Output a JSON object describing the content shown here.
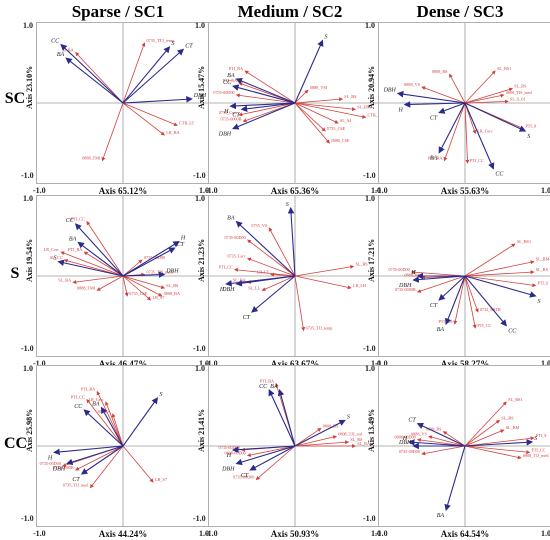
{
  "columns": [
    "Sparse / SC1",
    "Medium / SC2",
    "Dense / SC3"
  ],
  "rows": [
    "SC",
    "S",
    "CC"
  ],
  "ticks": {
    "xmin": "-1.0",
    "xmax": "1.0",
    "ymax": "1.0",
    "ymin": "-1.0"
  },
  "colors": {
    "env": "#2b2b8c",
    "species": "#d2403c",
    "axis": "#9a9a9a"
  },
  "chart_data": [
    {
      "type": "scatter",
      "id": "SC-SC1",
      "xlabel": "Axis 65.12%",
      "ylabel": "Axis 23.10%",
      "xlim": [
        -1,
        1
      ],
      "ylim": [
        -1,
        1
      ],
      "env": [
        {
          "label": "CC",
          "x": -0.72,
          "y": 0.73
        },
        {
          "label": "BA",
          "x": -0.66,
          "y": 0.56
        },
        {
          "label": "S",
          "x": 0.54,
          "y": 0.7
        },
        {
          "label": "CT",
          "x": 0.7,
          "y": 0.67
        },
        {
          "label": "DBH",
          "x": 0.8,
          "y": 0.05
        }
      ],
      "species": [
        {
          "label": "SL BA",
          "x": -0.55,
          "y": 0.63
        },
        {
          "label": "0735_TTJ_temp",
          "x": 0.25,
          "y": 0.75
        },
        {
          "label": "CTB_LT",
          "x": 0.63,
          "y": -0.28
        },
        {
          "label": "LR_BA",
          "x": 0.48,
          "y": -0.4
        },
        {
          "label": "0888_TMI",
          "x": -0.24,
          "y": -0.72
        }
      ]
    },
    {
      "type": "scatter",
      "id": "SC-SC2",
      "xlabel": "Axis 65.36%",
      "ylabel": "Axis 15.47%",
      "xlim": [
        -1,
        1
      ],
      "ylim": [
        -1,
        1
      ],
      "env": [
        {
          "label": "S",
          "x": 0.32,
          "y": 0.78
        },
        {
          "label": "BA",
          "x": -0.68,
          "y": 0.3
        },
        {
          "label": "CC",
          "x": -0.72,
          "y": 0.21
        },
        {
          "label": "H",
          "x": -0.75,
          "y": -0.04
        },
        {
          "label": "CT",
          "x": -0.62,
          "y": -0.08
        },
        {
          "label": "DBH",
          "x": -0.72,
          "y": -0.32
        }
      ],
      "species": [
        {
          "label": "PTI_BA",
          "x": -0.58,
          "y": 0.4
        },
        {
          "label": "PTI_BA",
          "x": -0.65,
          "y": 0.25
        },
        {
          "label": "0735-00D00",
          "x": -0.68,
          "y": 0.1
        },
        {
          "label": "0735_Cerc",
          "x": -0.65,
          "y": -0.15
        },
        {
          "label": "0735-0000B",
          "x": -0.6,
          "y": -0.23
        },
        {
          "label": "0888_VSI",
          "x": 0.15,
          "y": 0.16
        },
        {
          "label": "SL_BS",
          "x": 0.55,
          "y": 0.05
        },
        {
          "label": "SL_BM",
          "x": 0.7,
          "y": -0.08
        },
        {
          "label": "CTB_LT",
          "x": 0.82,
          "y": -0.18
        },
        {
          "label": "SL_S4",
          "x": 0.5,
          "y": -0.25
        },
        {
          "label": "0735_CSE",
          "x": 0.35,
          "y": -0.35
        },
        {
          "label": "0888_CSE",
          "x": 0.4,
          "y": -0.5
        }
      ]
    },
    {
      "type": "scatter",
      "id": "SC-SC3",
      "xlabel": "Axis 55.63%",
      "ylabel": "Axis 20.94%",
      "xlim": [
        -1,
        1
      ],
      "ylim": [
        -1,
        1
      ],
      "env": [
        {
          "label": "DBH",
          "x": -0.78,
          "y": 0.12
        },
        {
          "label": "H",
          "x": -0.7,
          "y": -0.02
        },
        {
          "label": "CT",
          "x": -0.3,
          "y": -0.12
        },
        {
          "label": "BA",
          "x": -0.3,
          "y": -0.62
        },
        {
          "label": "CC",
          "x": 0.33,
          "y": -0.82
        },
        {
          "label": "S",
          "x": 0.7,
          "y": -0.35
        }
      ],
      "species": [
        {
          "label": "SL_BS1",
          "x": 0.35,
          "y": 0.4
        },
        {
          "label": "0808_BS",
          "x": -0.18,
          "y": 0.36
        },
        {
          "label": "0888_VS",
          "x": -0.5,
          "y": 0.2
        },
        {
          "label": "SL_BS",
          "x": 0.55,
          "y": 0.18
        },
        {
          "label": "0808_TIS_med",
          "x": 0.45,
          "y": 0.1
        },
        {
          "label": "SL_S_01",
          "x": 0.5,
          "y": 0.02
        },
        {
          "label": "PTI_S",
          "x": 0.68,
          "y": -0.32
        },
        {
          "label": "LR_Cerc",
          "x": 0.12,
          "y": -0.38
        },
        {
          "label": "PTI_CC",
          "x": 0.03,
          "y": -0.75
        },
        {
          "label": "PTI_BA",
          "x": -0.24,
          "y": -0.72
        }
      ]
    },
    {
      "type": "scatter",
      "id": "S-SC1",
      "xlabel": "Axis 46.47%",
      "ylabel": "Axis 19.54%",
      "xlim": [
        -1,
        1
      ],
      "ylim": [
        -1,
        1
      ],
      "env": [
        {
          "label": "CC",
          "x": -0.55,
          "y": 0.65
        },
        {
          "label": "BA",
          "x": -0.52,
          "y": 0.42
        },
        {
          "label": "S",
          "x": -0.75,
          "y": 0.18
        },
        {
          "label": "H",
          "x": 0.65,
          "y": 0.43
        },
        {
          "label": "CT",
          "x": 0.6,
          "y": 0.35
        },
        {
          "label": "DBH",
          "x": 0.48,
          "y": 0.02
        }
      ],
      "species": [
        {
          "label": "PTI_CC",
          "x": -0.42,
          "y": 0.68
        },
        {
          "label": "PTI_BA",
          "x": -0.45,
          "y": 0.3
        },
        {
          "label": "LR_Cerc",
          "x": -0.72,
          "y": 0.3
        },
        {
          "label": "SL_CC",
          "x": -0.68,
          "y": 0.2
        },
        {
          "label": "SL_BA",
          "x": -0.58,
          "y": -0.08
        },
        {
          "label": "0735-00D00",
          "x": 0.22,
          "y": 0.2
        },
        {
          "label": "0735_TIS_med",
          "x": 0.25,
          "y": 0.02
        },
        {
          "label": "0888_TMI",
          "x": -0.3,
          "y": -0.18
        },
        {
          "label": "0735_CSE",
          "x": 0.05,
          "y": -0.25
        },
        {
          "label": "SL_BS",
          "x": 0.48,
          "y": -0.15
        },
        {
          "label": "LR_S7",
          "x": 0.32,
          "y": -0.3
        },
        {
          "label": "0808_BA",
          "x": 0.45,
          "y": -0.25
        }
      ]
    },
    {
      "type": "scatter",
      "id": "S-SC2",
      "xlabel": "Axis 63.67%",
      "ylabel": "Axis 21.23%",
      "xlim": [
        -1,
        1
      ],
      "ylim": [
        -1,
        1
      ],
      "env": [
        {
          "label": "S",
          "x": -0.05,
          "y": 0.85
        },
        {
          "label": "BA",
          "x": -0.68,
          "y": 0.68
        },
        {
          "label": "H",
          "x": -0.8,
          "y": -0.1
        },
        {
          "label": "DBH",
          "x": -0.68,
          "y": -0.1
        },
        {
          "label": "CT",
          "x": -0.5,
          "y": -0.45
        }
      ],
      "species": [
        {
          "label": "0735_VS",
          "x": -0.3,
          "y": 0.6
        },
        {
          "label": "0735-00D00",
          "x": -0.55,
          "y": 0.45
        },
        {
          "label": "0735_Cerc",
          "x": -0.55,
          "y": 0.22
        },
        {
          "label": "PTI_CC",
          "x": -0.7,
          "y": 0.08
        },
        {
          "label": "LR_LT",
          "x": -0.28,
          "y": 0.02
        },
        {
          "label": "SL_BA",
          "x": -0.55,
          "y": -0.08
        },
        {
          "label": "SL_LL",
          "x": -0.38,
          "y": -0.18
        },
        {
          "label": "SL_BS",
          "x": 0.68,
          "y": 0.12
        },
        {
          "label": "LR_LH",
          "x": 0.65,
          "y": -0.15
        },
        {
          "label": "0735_TJJ_temp",
          "x": 0.1,
          "y": -0.68
        }
      ]
    },
    {
      "type": "scatter",
      "id": "S-SC3",
      "xlabel": "Axis 58.27%",
      "ylabel": "Axis 17.21%",
      "xlim": [
        -1,
        1
      ],
      "ylim": [
        -1,
        1
      ],
      "env": [
        {
          "label": "H",
          "x": -0.55,
          "y": 0.0
        },
        {
          "label": "DBH",
          "x": -0.6,
          "y": -0.05
        },
        {
          "label": "CT",
          "x": -0.3,
          "y": -0.3
        },
        {
          "label": "BA",
          "x": -0.22,
          "y": -0.6
        },
        {
          "label": "CC",
          "x": 0.48,
          "y": -0.62
        },
        {
          "label": "S",
          "x": 0.82,
          "y": -0.25
        }
      ],
      "species": [
        {
          "label": "SL_BS1",
          "x": 0.58,
          "y": 0.4
        },
        {
          "label": "SL_BM",
          "x": 0.8,
          "y": 0.18
        },
        {
          "label": "SL_BS",
          "x": 0.8,
          "y": 0.05
        },
        {
          "label": "0735-00D00",
          "x": -0.62,
          "y": 0.05
        },
        {
          "label": "0888_BS",
          "x": -0.5,
          "y": -0.02
        },
        {
          "label": "0735-0000B",
          "x": -0.55,
          "y": -0.2
        },
        {
          "label": "PTI_S",
          "x": 0.82,
          "y": -0.12
        },
        {
          "label": "0732_BSTR",
          "x": 0.15,
          "y": -0.45
        },
        {
          "label": "PTI_BA",
          "x": -0.12,
          "y": -0.6
        },
        {
          "label": "PTI_CC",
          "x": 0.12,
          "y": -0.65
        }
      ]
    },
    {
      "type": "scatter",
      "id": "CC-SC1",
      "xlabel": "Axis 44.24%",
      "ylabel": "Axis 25.98%",
      "xlim": [
        -1,
        1
      ],
      "ylim": [
        -1,
        1
      ],
      "env": [
        {
          "label": "CC",
          "x": -0.45,
          "y": 0.45
        },
        {
          "label": "BA",
          "x": -0.25,
          "y": 0.48
        },
        {
          "label": "S",
          "x": 0.4,
          "y": 0.6
        },
        {
          "label": "H",
          "x": -0.8,
          "y": -0.08
        },
        {
          "label": "DBH",
          "x": -0.65,
          "y": -0.22
        },
        {
          "label": "CT",
          "x": -0.48,
          "y": -0.35
        }
      ],
      "species": [
        {
          "label": "PTI_BA",
          "x": -0.3,
          "y": 0.68
        },
        {
          "label": "PTI_CC",
          "x": -0.42,
          "y": 0.58
        },
        {
          "label": "LR_Cerc",
          "x": -0.2,
          "y": 0.55
        },
        {
          "label": "SL_BA",
          "x": -0.12,
          "y": 0.4
        },
        {
          "label": "0735-00D00",
          "x": -0.7,
          "y": -0.25
        },
        {
          "label": "0735-0000B",
          "x": -0.55,
          "y": -0.3
        },
        {
          "label": "0735_TJJ_med",
          "x": -0.38,
          "y": -0.52
        },
        {
          "label": "LR_S7",
          "x": 0.35,
          "y": -0.45
        }
      ]
    },
    {
      "type": "scatter",
      "id": "CC-SC2",
      "xlabel": "Axis 50.93%",
      "ylabel": "Axis 21.41%",
      "xlim": [
        -1,
        1
      ],
      "ylim": [
        -1,
        1
      ],
      "env": [
        {
          "label": "CC",
          "x": -0.3,
          "y": 0.7
        },
        {
          "label": "BA",
          "x": -0.18,
          "y": 0.7
        },
        {
          "label": "S",
          "x": 0.58,
          "y": 0.32
        },
        {
          "label": "H",
          "x": -0.72,
          "y": -0.05
        },
        {
          "label": "DBH",
          "x": -0.68,
          "y": -0.22
        },
        {
          "label": "CT",
          "x": -0.52,
          "y": -0.3
        }
      ],
      "species": [
        {
          "label": "PTI_BA",
          "x": -0.22,
          "y": 0.78
        },
        {
          "label": "0808_BS",
          "x": 0.3,
          "y": 0.22
        },
        {
          "label": "0808_TJJ_red",
          "x": 0.48,
          "y": 0.12
        },
        {
          "label": "SL_BS",
          "x": 0.62,
          "y": 0.05
        },
        {
          "label": "SL_BA",
          "x": 0.7,
          "y": 0.0
        },
        {
          "label": "0735-00D00",
          "x": -0.62,
          "y": -0.05
        },
        {
          "label": "0808-00D00",
          "x": -0.55,
          "y": -0.12
        },
        {
          "label": "0735-00D00",
          "x": -0.45,
          "y": -0.42
        }
      ]
    },
    {
      "type": "scatter",
      "id": "CC-SC3",
      "xlabel": "Axis 64.54%",
      "ylabel": "Axis 13.49%",
      "xlim": [
        -1,
        1
      ],
      "ylim": [
        -1,
        1
      ],
      "env": [
        {
          "label": "CT",
          "x": -0.55,
          "y": 0.28
        },
        {
          "label": "H",
          "x": -0.65,
          "y": 0.05
        },
        {
          "label": "DBH",
          "x": -0.6,
          "y": 0.0
        },
        {
          "label": "BA",
          "x": -0.22,
          "y": -0.8
        },
        {
          "label": "S",
          "x": 0.78,
          "y": 0.05
        }
      ],
      "species": [
        {
          "label": "SL_BS1",
          "x": 0.48,
          "y": 0.55
        },
        {
          "label": "0808_BS",
          "x": -0.25,
          "y": 0.18
        },
        {
          "label": "SL_BS",
          "x": 0.4,
          "y": 0.32
        },
        {
          "label": "SL_BM",
          "x": 0.45,
          "y": 0.2
        },
        {
          "label": "PTI_S",
          "x": 0.8,
          "y": 0.1
        },
        {
          "label": "PTI_CC",
          "x": 0.75,
          "y": -0.08
        },
        {
          "label": "0808_TJJ_med",
          "x": 0.65,
          "y": -0.15
        },
        {
          "label": "0888_VS",
          "x": -0.42,
          "y": 0.12
        },
        {
          "label": "0808-00D00",
          "x": -0.55,
          "y": 0.08
        },
        {
          "label": "0735-00D00",
          "x": -0.5,
          "y": -0.1
        }
      ]
    }
  ]
}
